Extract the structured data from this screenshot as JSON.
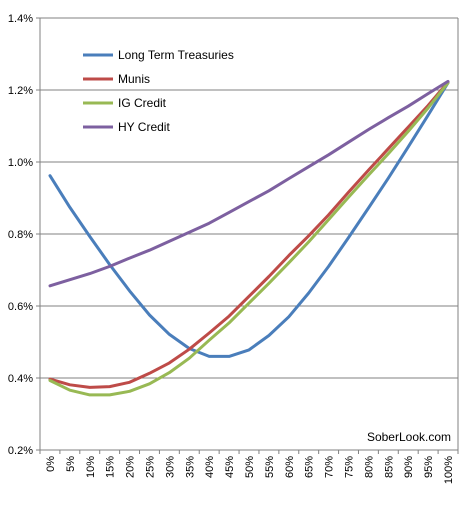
{
  "chart_data": {
    "type": "line",
    "x": [
      "0%",
      "5%",
      "10%",
      "15%",
      "20%",
      "25%",
      "30%",
      "35%",
      "40%",
      "45%",
      "50%",
      "55%",
      "60%",
      "65%",
      "70%",
      "75%",
      "80%",
      "85%",
      "90%",
      "95%",
      "100%"
    ],
    "ylim": [
      0.2,
      1.4
    ],
    "yticks": [
      "0.2%",
      "0.4%",
      "0.6%",
      "0.8%",
      "1.0%",
      "1.2%",
      "1.4%"
    ],
    "ytick_values": [
      0.2,
      0.4,
      0.6,
      0.8,
      1.0,
      1.2,
      1.4
    ],
    "grid": "horizontal",
    "legend_position": "top-left",
    "annotation": "SoberLook.com",
    "series": [
      {
        "name": "Long Term Treasuries",
        "color": "#4a7ebb",
        "values": [
          0.962,
          0.874,
          0.793,
          0.715,
          0.642,
          0.575,
          0.521,
          0.482,
          0.46,
          0.46,
          0.478,
          0.518,
          0.57,
          0.636,
          0.71,
          0.79,
          0.872,
          0.955,
          1.042,
          1.13,
          1.22
        ]
      },
      {
        "name": "Munis",
        "color": "#be4b48",
        "values": [
          0.397,
          0.381,
          0.374,
          0.376,
          0.388,
          0.413,
          0.442,
          0.48,
          0.525,
          0.572,
          0.627,
          0.682,
          0.74,
          0.795,
          0.853,
          0.916,
          0.977,
          1.037,
          1.097,
          1.157,
          1.222
        ]
      },
      {
        "name": "IG Credit",
        "color": "#98b954",
        "values": [
          0.393,
          0.366,
          0.353,
          0.353,
          0.363,
          0.384,
          0.415,
          0.455,
          0.505,
          0.553,
          0.608,
          0.663,
          0.72,
          0.778,
          0.84,
          0.902,
          0.963,
          1.023,
          1.085,
          1.15,
          1.22
        ]
      },
      {
        "name": "HY Credit",
        "color": "#7d60a0",
        "values": [
          0.656,
          0.673,
          0.69,
          0.71,
          0.733,
          0.755,
          0.78,
          0.805,
          0.83,
          0.86,
          0.89,
          0.92,
          0.954,
          0.987,
          1.02,
          1.055,
          1.09,
          1.123,
          1.155,
          1.19,
          1.224
        ]
      }
    ]
  }
}
